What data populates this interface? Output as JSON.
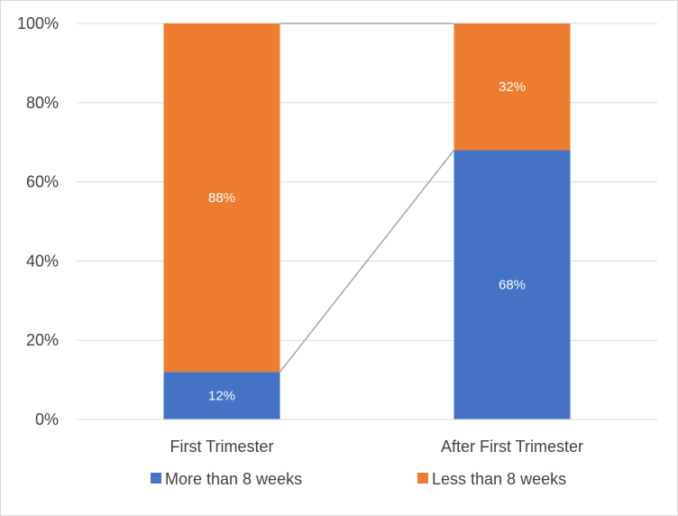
{
  "chart_data": {
    "type": "bar",
    "stacked": true,
    "percent_stacked": true,
    "title": "",
    "xlabel": "",
    "ylabel": "",
    "categories": [
      "First Trimester",
      "After First Trimester"
    ],
    "series": [
      {
        "name": "More than 8 weeks",
        "values": [
          12,
          68
        ],
        "labels": [
          "12%",
          "68%"
        ],
        "color": "#4472c4"
      },
      {
        "name": "Less than 8 weeks",
        "values": [
          88,
          32
        ],
        "labels": [
          "88%",
          "32%"
        ],
        "color": "#ed7d31"
      }
    ],
    "series_lines": true,
    "ylim": [
      0,
      100
    ],
    "yticks": [
      0,
      20,
      40,
      60,
      80,
      100
    ],
    "ytick_labels": [
      "0%",
      "20%",
      "40%",
      "60%",
      "80%",
      "100%"
    ],
    "grid": true,
    "legend_position": "bottom",
    "colors": {
      "gridline": "#d9d9d9",
      "series_line": "#a5a5a5",
      "axis": "#d9d9d9",
      "text": "#404040"
    }
  }
}
